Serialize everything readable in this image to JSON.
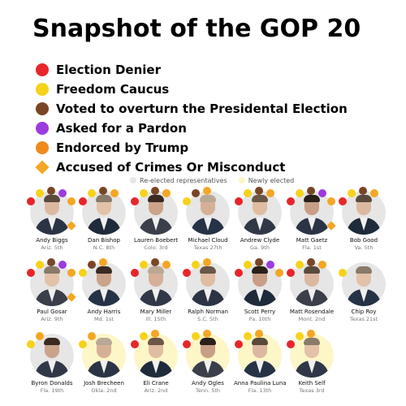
{
  "title": "Snapshot of the GOP 20",
  "legend": [
    {
      "label": "Election Denier",
      "color": "#e8252a",
      "shape": "circle",
      "icon": "red-dot-icon"
    },
    {
      "label": "Freedom Caucus",
      "color": "#f7d21a",
      "shape": "circle",
      "icon": "yellow-dot-icon"
    },
    {
      "label": "Voted to overturn the Presidental Election",
      "color": "#7a4526",
      "shape": "circle",
      "icon": "brown-dot-icon"
    },
    {
      "label": "Asked for a Pardon",
      "color": "#9b3be0",
      "shape": "circle",
      "icon": "purple-dot-icon"
    },
    {
      "label": "Endorced by Trump",
      "color": "#f08a1c",
      "shape": "circle",
      "icon": "orange-dot-icon"
    },
    {
      "label": "Accused of Crimes Or Misconduct",
      "color": "#f5a623",
      "shape": "diamond",
      "icon": "orange-diamond-icon"
    }
  ],
  "key": {
    "reelected_label": "Re-elected representatives",
    "reelected_color": "#e6e6e6",
    "new_label": "Newly elected",
    "new_color": "#fdf6c7"
  },
  "rows": [
    [
      {
        "name": "Andy Biggs",
        "district": "Ariz. 5th",
        "new": false,
        "badges": [
          "red",
          "yellow",
          "brown",
          "purple",
          "orange"
        ],
        "diamond": true
      },
      {
        "name": "Dan Bishop",
        "district": "N.C. 8th",
        "new": false,
        "badges": [
          "red",
          "yellow",
          "brown",
          "orange"
        ],
        "diamond": false
      },
      {
        "name": "Lauren Boebert",
        "district": "Colo. 3rd",
        "new": false,
        "badges": [
          "red",
          "yellow",
          "brown",
          "orange"
        ],
        "diamond": false
      },
      {
        "name": "Michael Cloud",
        "district": "Texas 27th",
        "new": false,
        "badges": [
          "yellow",
          "brown",
          "orange"
        ],
        "diamond": false
      },
      {
        "name": "Andrew Clyde",
        "district": "Ga. 9th",
        "new": false,
        "badges": [
          "red",
          "yellow",
          "brown",
          "orange"
        ],
        "diamond": false
      },
      {
        "name": "Matt Gaetz",
        "district": "Fla. 1st",
        "new": false,
        "badges": [
          "red",
          "yellow",
          "brown",
          "purple",
          "orange"
        ],
        "diamond": true
      },
      {
        "name": "Bob Good",
        "district": "Va. 5th",
        "new": false,
        "badges": [
          "red",
          "yellow",
          "brown",
          "orange"
        ],
        "diamond": false
      }
    ],
    [
      {
        "name": "Paul Gosar",
        "district": "Ariz. 9th",
        "new": false,
        "badges": [
          "red",
          "yellow",
          "brown",
          "purple",
          "orange"
        ],
        "diamond": true
      },
      {
        "name": "Andy Harris",
        "district": "Md. 1st",
        "new": false,
        "badges": [
          "yellow",
          "brown",
          "orange"
        ],
        "diamond": false
      },
      {
        "name": "Mary Miller",
        "district": "Ill. 15th",
        "new": false,
        "badges": [
          "red",
          "yellow",
          "brown",
          "orange"
        ],
        "diamond": false
      },
      {
        "name": "Ralph Norman",
        "district": "S.C. 5th",
        "new": false,
        "badges": [
          "red",
          "yellow",
          "orange"
        ],
        "diamond": false
      },
      {
        "name": "Scott Perry",
        "district": "Pa. 10th",
        "new": false,
        "badges": [
          "red",
          "yellow",
          "brown",
          "purple",
          "orange"
        ],
        "diamond": false
      },
      {
        "name": "Matt Rosendale",
        "district": "Mont. 2nd",
        "new": false,
        "badges": [
          "red",
          "yellow",
          "brown",
          "orange"
        ],
        "diamond": false
      },
      {
        "name": "Chip Roy",
        "district": "Texas 21st",
        "new": false,
        "badges": [
          "yellow"
        ],
        "diamond": false
      }
    ],
    [
      {
        "name": "Byron Donalds",
        "district": "Fla. 19th",
        "new": false,
        "badges": [
          "yellow",
          "orange"
        ],
        "diamond": false
      },
      {
        "name": "Josh Brecheen",
        "district": "Okla. 2nd",
        "new": true,
        "badges": [
          "yellow",
          "orange"
        ],
        "diamond": false
      },
      {
        "name": "Eli Crane",
        "district": "Ariz. 2nd",
        "new": true,
        "badges": [
          "red",
          "yellow",
          "orange"
        ],
        "diamond": false
      },
      {
        "name": "Andy Ogles",
        "district": "Tenn. 5th",
        "new": true,
        "badges": [
          "red",
          "yellow",
          "orange"
        ],
        "diamond": false
      },
      {
        "name": "Anna Paulina Luna",
        "district": "Fla. 13th",
        "new": true,
        "badges": [
          "red",
          "yellow",
          "orange"
        ],
        "diamond": false
      },
      {
        "name": "Keith Self",
        "district": "Texas 3rd",
        "new": true,
        "badges": [
          "red",
          "yellow",
          "orange"
        ],
        "diamond": false
      }
    ]
  ]
}
